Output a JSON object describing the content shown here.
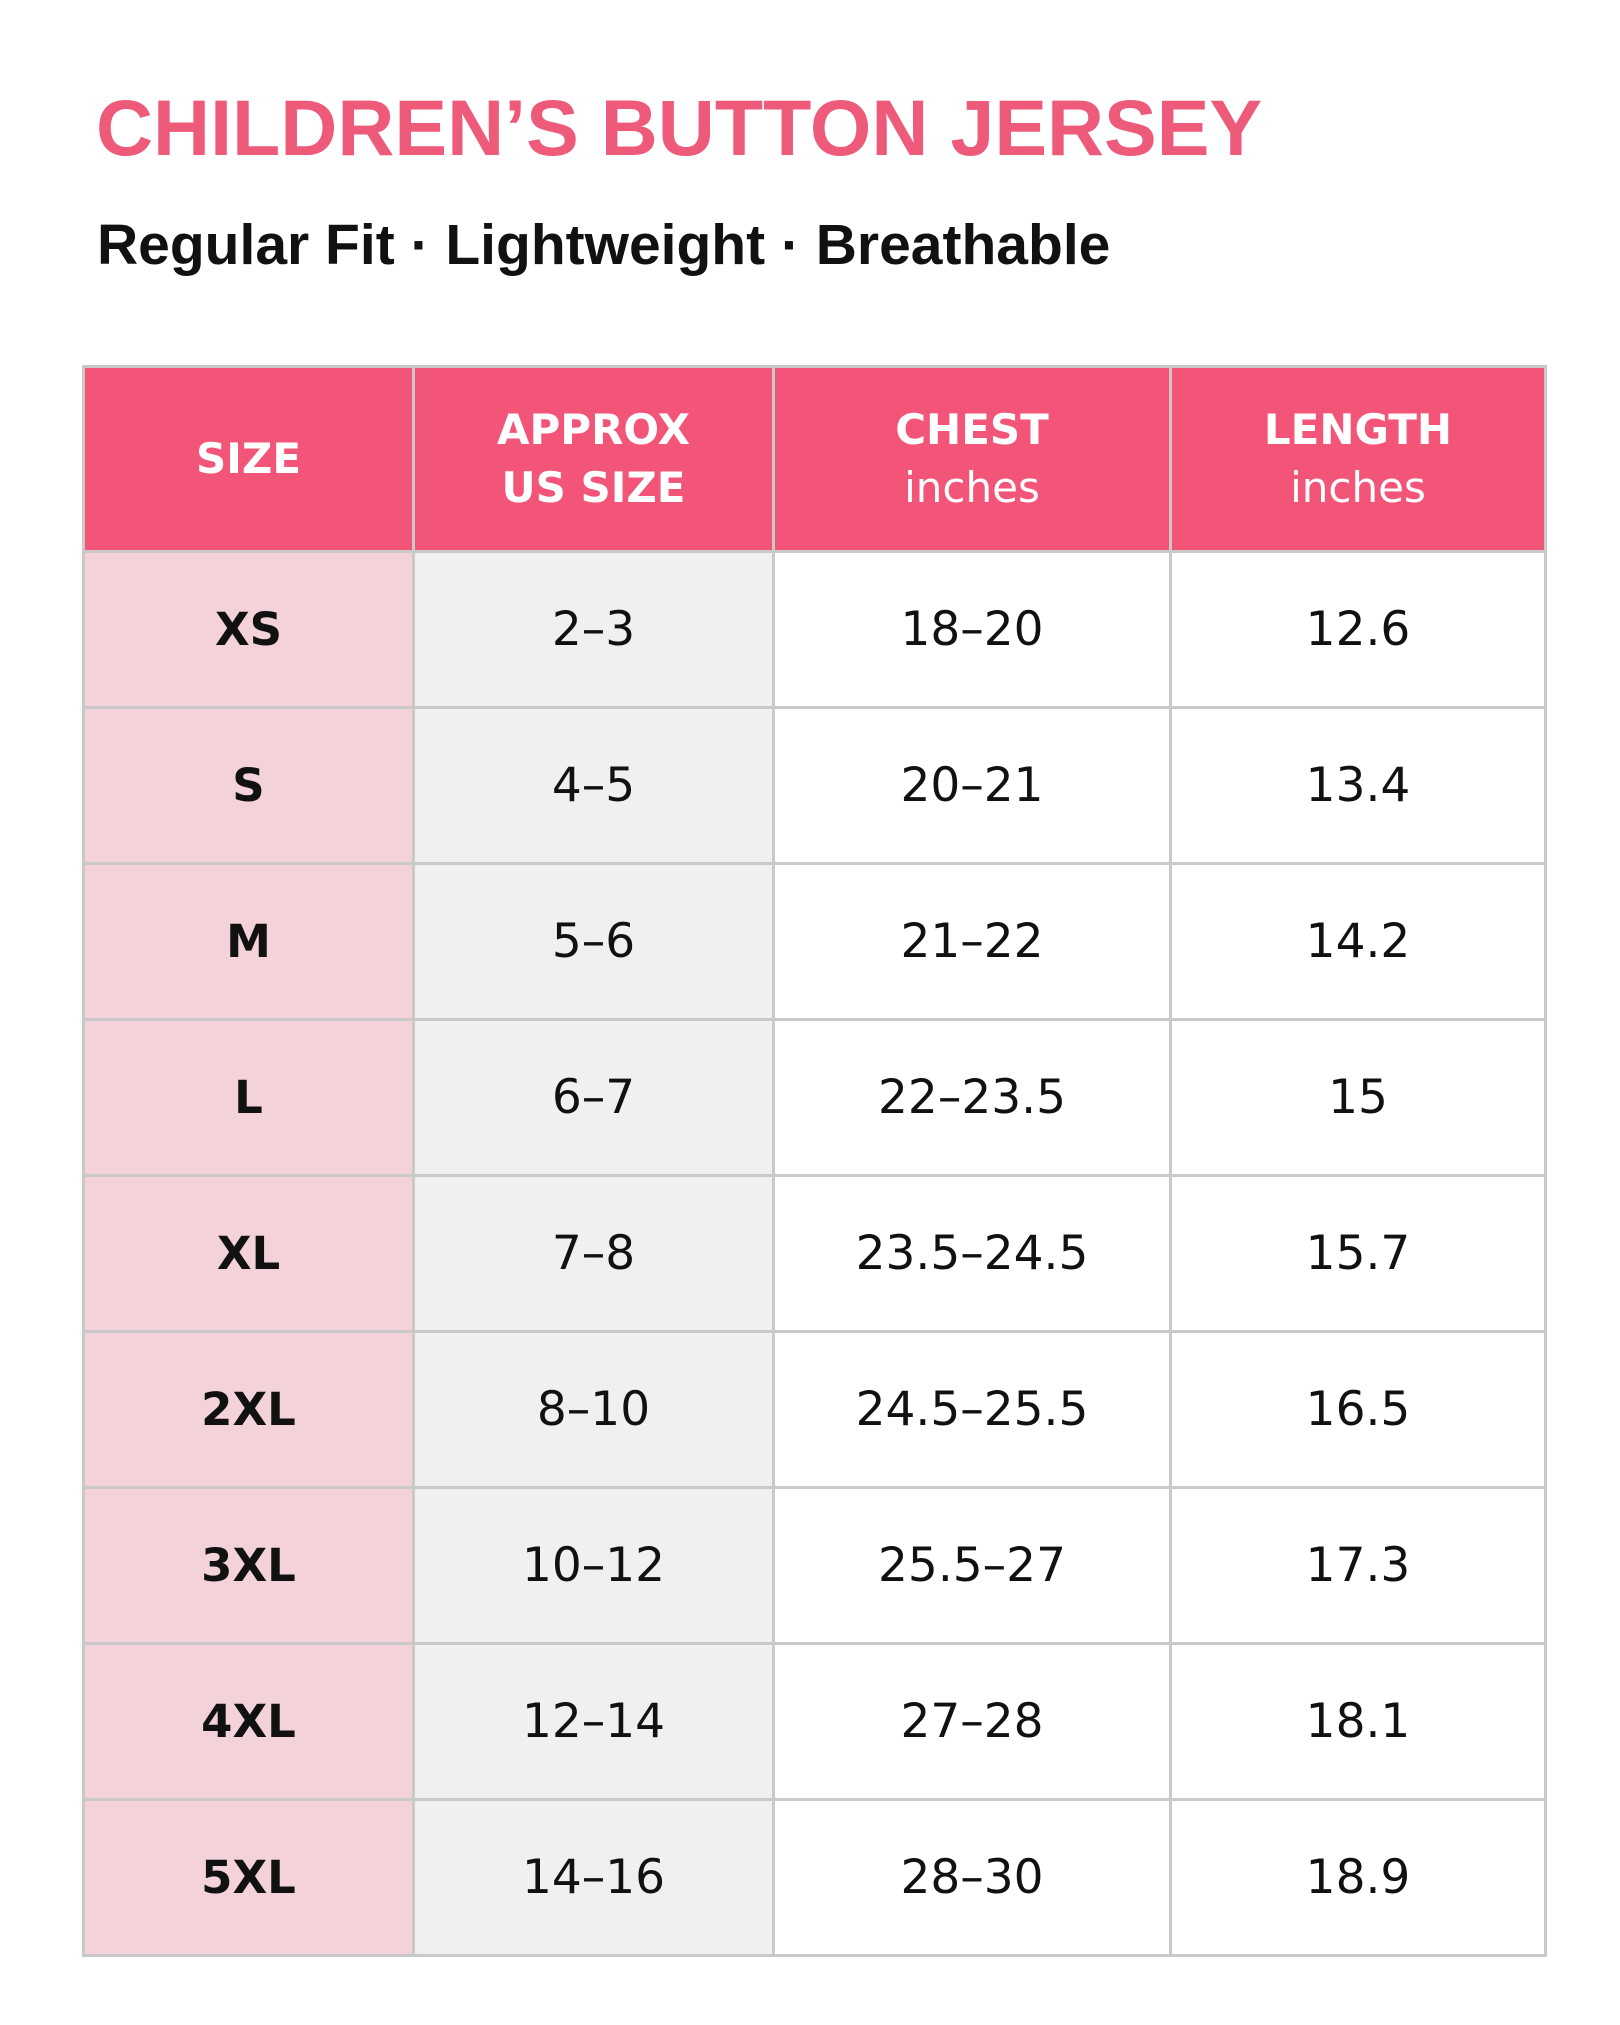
{
  "header": {
    "title": "CHILDREN’S BUTTON JERSEY",
    "subtitle": "Regular Fit · Lightweight · Breathable"
  },
  "table": {
    "columns": [
      {
        "title": [
          "SIZE"
        ]
      },
      {
        "title": [
          "APPROX",
          "US SIZE"
        ]
      },
      {
        "title": [
          "CHEST"
        ],
        "unit": "inches"
      },
      {
        "title": [
          "LENGTH"
        ],
        "unit": "inches"
      }
    ],
    "rows": [
      [
        "XS",
        "2–3",
        "18–20",
        "12.6"
      ],
      [
        "S",
        "4–5",
        "20–21",
        "13.4"
      ],
      [
        "M",
        "5–6",
        "21–22",
        "14.2"
      ],
      [
        "L",
        "6–7",
        "22–23.5",
        "15"
      ],
      [
        "XL",
        "7–8",
        "23.5–24.5",
        "15.7"
      ],
      [
        "2XL",
        "8–10",
        "24.5–25.5",
        "16.5"
      ],
      [
        "3XL",
        "10–12",
        "25.5–27",
        "17.3"
      ],
      [
        "4XL",
        "12–14",
        "27–28",
        "18.1"
      ],
      [
        "5XL",
        "14–16",
        "28–30",
        "18.9"
      ]
    ]
  }
}
